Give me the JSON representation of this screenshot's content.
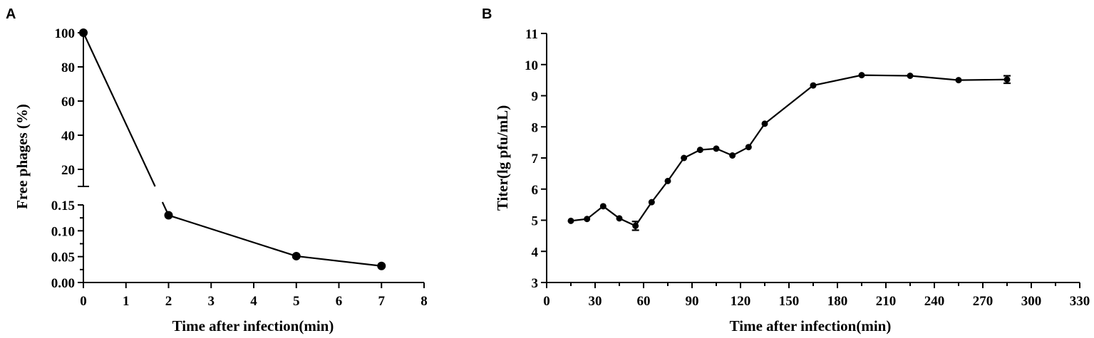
{
  "chart_data": [
    {
      "panel": "A",
      "type": "line",
      "xlabel": "Time after infection(min)",
      "ylabel": "Free phages (%)",
      "xlim": [
        0,
        8
      ],
      "x_ticks": [
        "0",
        "1",
        "2",
        "3",
        "4",
        "5",
        "6",
        "7",
        "8"
      ],
      "y_axis_break": true,
      "ylim_lower": [
        0,
        0.15
      ],
      "y_ticks_lower": [
        "0.00",
        "0.05",
        "0.10",
        "0.15"
      ],
      "ylim_upper": [
        10,
        100
      ],
      "y_ticks_upper": [
        "20",
        "40",
        "60",
        "80",
        "100"
      ],
      "grid": false,
      "series": [
        {
          "x": [
            0,
            2,
            5,
            7
          ],
          "y": [
            100,
            0.13,
            0.051,
            0.032
          ]
        }
      ]
    },
    {
      "panel": "B",
      "type": "line",
      "xlabel": "Time after infection(min)",
      "ylabel": "Titer(lg pfu/mL)",
      "xlim": [
        0,
        330
      ],
      "ylim": [
        3,
        11
      ],
      "x_ticks": [
        "0",
        "30",
        "60",
        "90",
        "120",
        "150",
        "180",
        "210",
        "240",
        "270",
        "300",
        "330"
      ],
      "y_ticks": [
        "3",
        "4",
        "5",
        "6",
        "7",
        "8",
        "9",
        "10",
        "11"
      ],
      "grid": false,
      "series": [
        {
          "x": [
            15,
            25,
            35,
            45,
            55,
            65,
            75,
            85,
            95,
            105,
            115,
            125,
            135,
            165,
            195,
            225,
            255,
            285
          ],
          "y": [
            4.98,
            5.04,
            5.45,
            5.06,
            4.82,
            5.58,
            6.26,
            7.0,
            7.26,
            7.3,
            7.08,
            7.35,
            8.1,
            9.33,
            9.66,
            9.64,
            9.5,
            9.52
          ],
          "error": [
            0,
            0,
            0,
            0,
            0.14,
            0,
            0,
            0,
            0,
            0,
            0,
            0,
            0,
            0,
            0,
            0,
            0,
            0.12
          ]
        }
      ]
    }
  ]
}
